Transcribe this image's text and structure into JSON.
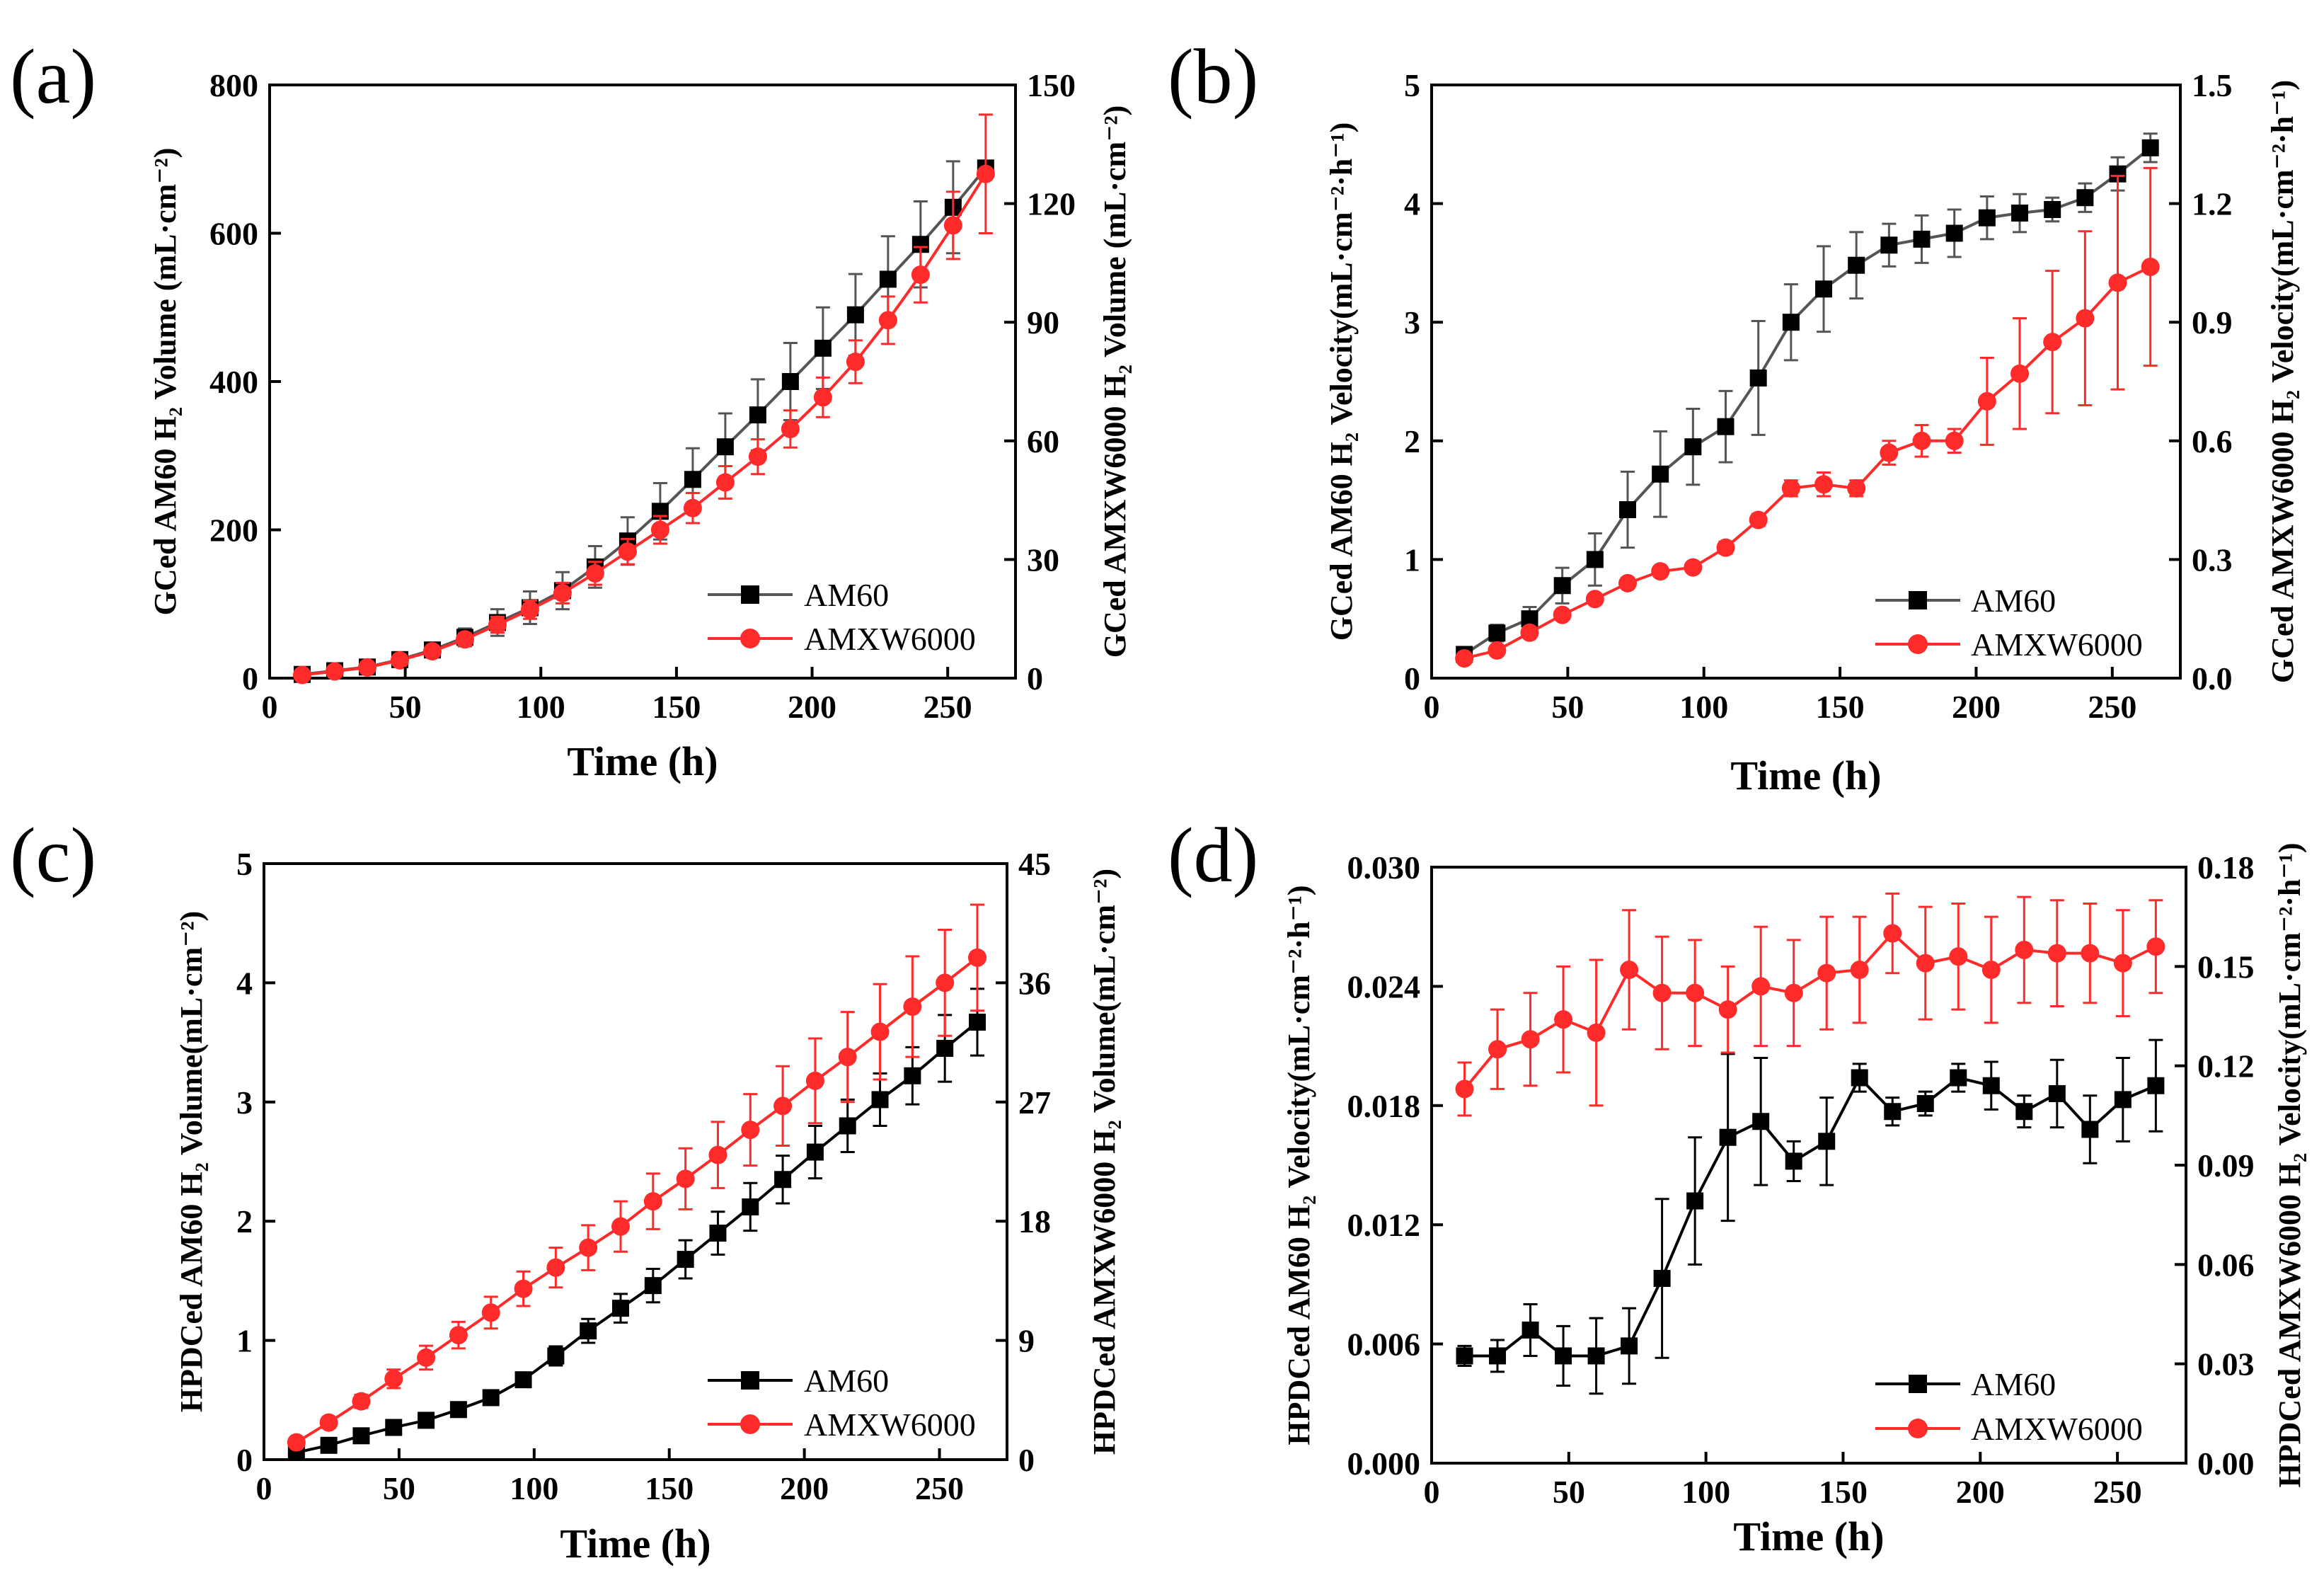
{
  "figure": {
    "colors": {
      "am60_grey": "#555555",
      "am60_black": "#000000",
      "amxw": "#ff2a2a"
    }
  },
  "chart_data": [
    {
      "panel": "(a)",
      "type": "line",
      "xlabel": "Time (h)",
      "ylabel_left": "GCed AM60 H₂ Volume (mL·cm⁻²)",
      "ylabel_right": "GCed AMXW6000 H₂ Volume (mL·cm⁻²)",
      "xlim": [
        0,
        275
      ],
      "ylim_left": [
        0,
        800
      ],
      "ylim_right": [
        0,
        150
      ],
      "xticks": [
        "0",
        "50",
        "100",
        "150",
        "200",
        "250"
      ],
      "yticks_left": [
        "0",
        "200",
        "400",
        "600",
        "800"
      ],
      "yticks_right": [
        "0",
        "30",
        "60",
        "90",
        "120",
        "150"
      ],
      "x": [
        12,
        24,
        36,
        48,
        60,
        72,
        84,
        96,
        108,
        120,
        132,
        144,
        156,
        168,
        180,
        192,
        204,
        216,
        228,
        240,
        252,
        264
      ],
      "series": [
        {
          "name": "AM60",
          "axis": "left",
          "marker": "square",
          "color": "#555555",
          "values": [
            5,
            10,
            15,
            25,
            38,
            55,
            75,
            95,
            118,
            150,
            185,
            225,
            268,
            312,
            355,
            400,
            445,
            490,
            538,
            585,
            635,
            688
          ],
          "errors": [
            2,
            3,
            4,
            6,
            8,
            12,
            18,
            22,
            25,
            28,
            32,
            38,
            42,
            45,
            48,
            52,
            55,
            55,
            58,
            58,
            62,
            8
          ]
        },
        {
          "name": "AMXW6000",
          "axis": "right",
          "marker": "circle",
          "color": "#ff2a2a",
          "values": [
            0.8,
            1.7,
            2.7,
            4.5,
            6.8,
            9.8,
            13.5,
            17.3,
            21.5,
            26.5,
            32,
            37.5,
            43,
            49.5,
            56,
            63,
            71,
            80,
            90.5,
            102,
            114.5,
            127.5
          ],
          "errors": [
            0.4,
            0.5,
            0.6,
            0.8,
            1.1,
            1.5,
            2,
            2.3,
            2.6,
            2.9,
            3.2,
            3.5,
            3.8,
            4.1,
            4.4,
            4.7,
            5,
            5.4,
            6,
            7,
            8.5,
            15
          ]
        }
      ],
      "legend": {
        "position": "bottom-right",
        "entries": [
          "AM60",
          "AMXW6000"
        ]
      }
    },
    {
      "panel": "(b)",
      "type": "line",
      "xlabel": "Time (h)",
      "ylabel_left": "GCed AM60 H₂ Velocity(mL·cm⁻²·h⁻¹)",
      "ylabel_right": "GCed AMXW6000 H₂ Velocity(mL·cm⁻²·h⁻¹)",
      "xlim": [
        0,
        275
      ],
      "ylim_left": [
        0,
        5
      ],
      "ylim_right": [
        0,
        1.5
      ],
      "xticks": [
        "0",
        "50",
        "100",
        "150",
        "200",
        "250"
      ],
      "yticks_left": [
        "0",
        "1",
        "2",
        "3",
        "4",
        "5"
      ],
      "yticks_right": [
        "0.0",
        "0.3",
        "0.6",
        "0.9",
        "1.2",
        "1.5"
      ],
      "x": [
        12,
        24,
        36,
        48,
        60,
        72,
        84,
        96,
        108,
        120,
        132,
        144,
        156,
        168,
        180,
        192,
        204,
        216,
        228,
        240,
        252,
        264
      ],
      "series": [
        {
          "name": "AM60",
          "axis": "left",
          "marker": "square",
          "color": "#555555",
          "values": [
            0.2,
            0.38,
            0.5,
            0.78,
            1.0,
            1.42,
            1.72,
            1.95,
            2.12,
            2.53,
            3.0,
            3.28,
            3.48,
            3.65,
            3.7,
            3.75,
            3.88,
            3.92,
            3.95,
            4.05,
            4.25,
            4.47
          ],
          "errors": [
            0.04,
            0.07,
            0.1,
            0.15,
            0.22,
            0.32,
            0.36,
            0.32,
            0.3,
            0.48,
            0.32,
            0.36,
            0.28,
            0.18,
            0.2,
            0.2,
            0.18,
            0.16,
            0.1,
            0.12,
            0.14,
            0.12
          ]
        },
        {
          "name": "AMXW6000",
          "axis": "right",
          "marker": "circle",
          "color": "#ff2a2a",
          "values": [
            0.05,
            0.07,
            0.115,
            0.16,
            0.2,
            0.24,
            0.27,
            0.28,
            0.33,
            0.4,
            0.48,
            0.49,
            0.48,
            0.57,
            0.6,
            0.6,
            0.7,
            0.77,
            0.85,
            0.91,
            1.0,
            1.04
          ],
          "errors": [
            0.01,
            0.01,
            0.012,
            0.012,
            0.012,
            0.012,
            0.012,
            0.012,
            0.015,
            0.015,
            0.02,
            0.03,
            0.02,
            0.03,
            0.04,
            0.03,
            0.11,
            0.14,
            0.18,
            0.22,
            0.27,
            0.25
          ]
        }
      ],
      "legend": {
        "position": "bottom-right",
        "entries": [
          "AM60",
          "AMXW6000"
        ]
      }
    },
    {
      "panel": "(c)",
      "type": "line",
      "xlabel": "Time (h)",
      "ylabel_left": "HPDCed AM60 H₂ Volume(mL·cm⁻²)",
      "ylabel_right": "HPDCed AMXW6000 H₂ Volume(mL·cm⁻²)",
      "xlim": [
        0,
        275
      ],
      "ylim_left": [
        0,
        5
      ],
      "ylim_right": [
        0,
        45
      ],
      "xticks": [
        "0",
        "50",
        "100",
        "150",
        "200",
        "250"
      ],
      "yticks_left": [
        "0",
        "1",
        "2",
        "3",
        "4",
        "5"
      ],
      "yticks_right": [
        "0",
        "9",
        "18",
        "27",
        "36",
        "45"
      ],
      "x": [
        12,
        24,
        36,
        48,
        60,
        72,
        84,
        96,
        108,
        120,
        132,
        144,
        156,
        168,
        180,
        192,
        204,
        216,
        228,
        240,
        252,
        264
      ],
      "series": [
        {
          "name": "AM60",
          "axis": "left",
          "marker": "square",
          "color": "#000000",
          "values": [
            0.06,
            0.12,
            0.2,
            0.27,
            0.33,
            0.42,
            0.52,
            0.67,
            0.87,
            1.08,
            1.27,
            1.46,
            1.68,
            1.9,
            2.12,
            2.35,
            2.58,
            2.8,
            3.02,
            3.22,
            3.45,
            3.67
          ],
          "errors": [
            0.02,
            0.02,
            0.03,
            0.03,
            0.03,
            0.04,
            0.05,
            0.06,
            0.08,
            0.1,
            0.12,
            0.14,
            0.16,
            0.18,
            0.2,
            0.2,
            0.22,
            0.22,
            0.22,
            0.24,
            0.28,
            0.28
          ]
        },
        {
          "name": "AMXW6000",
          "axis": "right",
          "marker": "circle",
          "color": "#ff2a2a",
          "values": [
            1.3,
            2.8,
            4.4,
            6.1,
            7.7,
            9.4,
            11.1,
            12.9,
            14.5,
            16.0,
            17.6,
            19.5,
            21.2,
            23.0,
            24.9,
            26.7,
            28.6,
            30.4,
            32.3,
            34.2,
            36.0,
            37.9
          ],
          "errors": [
            0.3,
            0.4,
            0.5,
            0.7,
            0.9,
            1.0,
            1.2,
            1.3,
            1.5,
            1.7,
            1.9,
            2.1,
            2.3,
            2.5,
            2.7,
            3.0,
            3.2,
            3.4,
            3.6,
            3.8,
            4.0,
            4.0
          ]
        }
      ],
      "legend": {
        "position": "bottom-right",
        "entries": [
          "AM60",
          "AMXW6000"
        ]
      }
    },
    {
      "panel": "(d)",
      "type": "line",
      "xlabel": "Time (h)",
      "ylabel_left": "HPDCed AM60 H₂ Velocity(mL·cm⁻²·h⁻¹)",
      "ylabel_right": "HPDCed AMXW6000 H₂ Velocity(mL·cm⁻²·h⁻¹)",
      "xlim": [
        0,
        275
      ],
      "ylim_left": [
        0,
        0.03
      ],
      "ylim_right": [
        0,
        0.18
      ],
      "xticks": [
        "0",
        "50",
        "100",
        "150",
        "200",
        "250"
      ],
      "yticks_left": [
        "0.000",
        "0.006",
        "0.012",
        "0.018",
        "0.024",
        "0.030"
      ],
      "yticks_right": [
        "0.00",
        "0.03",
        "0.06",
        "0.09",
        "0.12",
        "0.15",
        "0.18"
      ],
      "x": [
        12,
        24,
        36,
        48,
        60,
        72,
        84,
        96,
        108,
        120,
        132,
        144,
        156,
        168,
        180,
        192,
        204,
        216,
        228,
        240,
        252,
        264
      ],
      "series": [
        {
          "name": "AM60",
          "axis": "left",
          "marker": "square",
          "color": "#000000",
          "values": [
            0.0054,
            0.0054,
            0.0067,
            0.0054,
            0.0054,
            0.0059,
            0.0093,
            0.0132,
            0.0164,
            0.0172,
            0.0152,
            0.0162,
            0.0194,
            0.0177,
            0.0181,
            0.0194,
            0.019,
            0.0177,
            0.0186,
            0.0168,
            0.0183,
            0.019
          ],
          "errors": [
            0.0005,
            0.0008,
            0.0013,
            0.0015,
            0.0019,
            0.0019,
            0.004,
            0.0032,
            0.0042,
            0.0032,
            0.001,
            0.0022,
            0.0007,
            0.0007,
            0.0006,
            0.0007,
            0.0012,
            0.0008,
            0.0017,
            0.0017,
            0.0021,
            0.0023
          ]
        },
        {
          "name": "AMXW6000",
          "axis": "right",
          "marker": "circle",
          "color": "#ff2a2a",
          "values": [
            0.113,
            0.125,
            0.128,
            0.134,
            0.13,
            0.149,
            0.142,
            0.142,
            0.137,
            0.144,
            0.142,
            0.148,
            0.149,
            0.16,
            0.151,
            0.153,
            0.149,
            0.155,
            0.154,
            0.154,
            0.151,
            0.156
          ],
          "errors": [
            0.008,
            0.012,
            0.014,
            0.016,
            0.022,
            0.018,
            0.017,
            0.016,
            0.013,
            0.018,
            0.016,
            0.017,
            0.016,
            0.012,
            0.017,
            0.016,
            0.016,
            0.016,
            0.016,
            0.015,
            0.016,
            0.014
          ]
        }
      ],
      "legend": {
        "position": "bottom-right",
        "entries": [
          "AM60",
          "AMXW6000"
        ]
      }
    }
  ]
}
